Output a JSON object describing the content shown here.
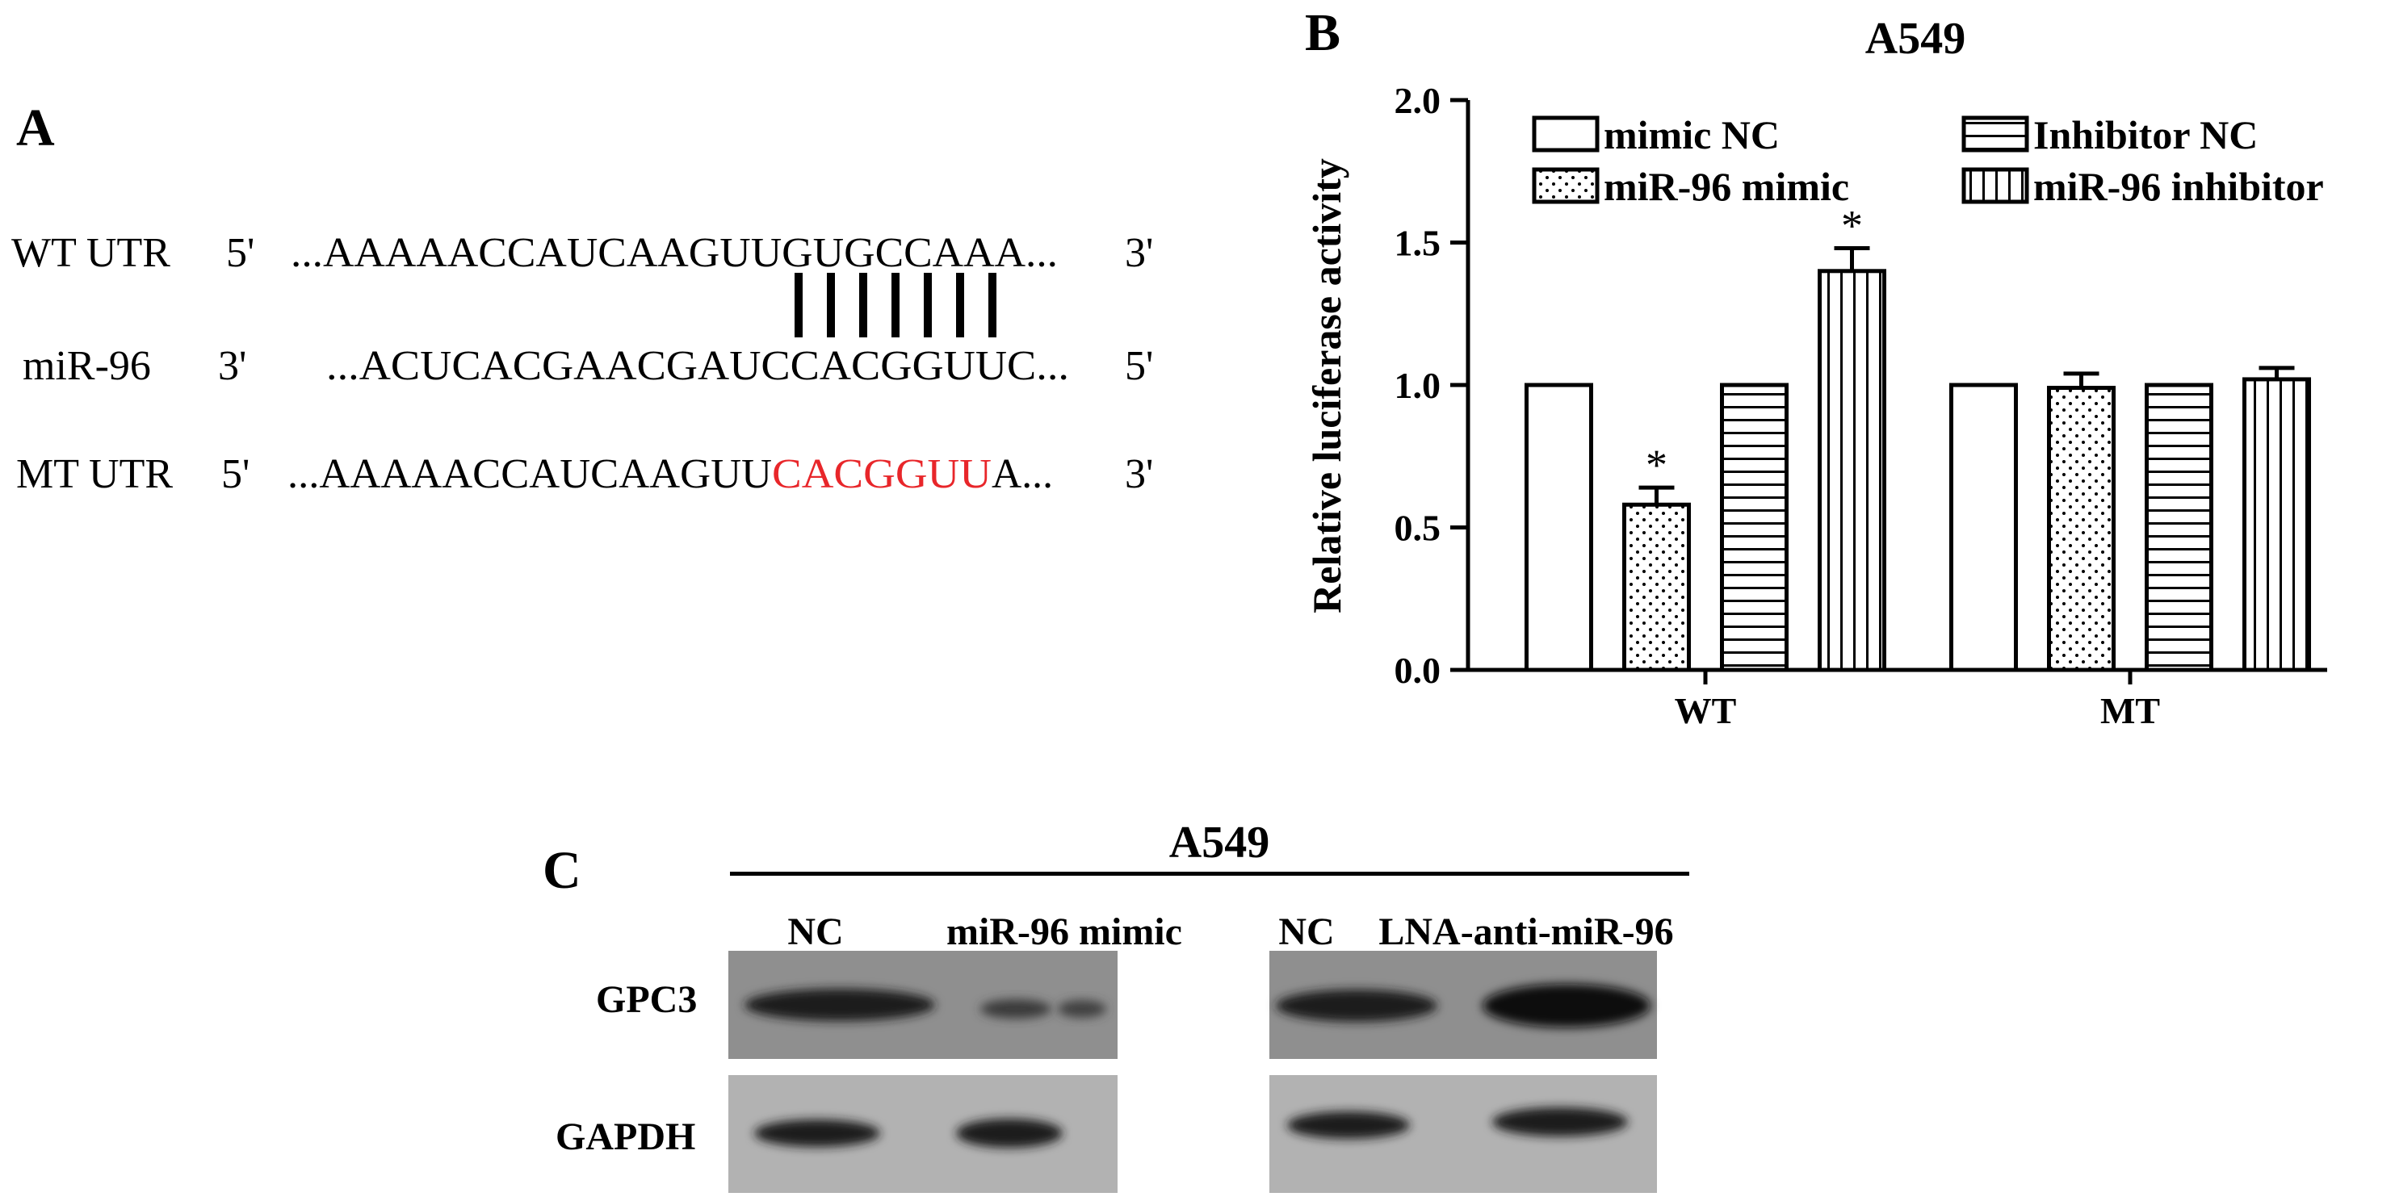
{
  "panel_a": {
    "letter": "A",
    "rows": [
      {
        "label": "WT UTR",
        "left_end": "5'",
        "right_end": "3'",
        "seq_plain": "...AAAAACCAUCAAGUUGUGCCAAA...",
        "seq_red": "",
        "seq_after": ""
      },
      {
        "label": "miR-96",
        "left_end": "3'",
        "right_end": "5'",
        "seq_plain": "...ACUCACGAACGAUCCACGGUUC...",
        "seq_red": "",
        "seq_after": ""
      },
      {
        "label": "MT UTR",
        "left_end": "5'",
        "right_end": "3'",
        "seq_plain": "...AAAAACCAUCAAGUU",
        "seq_red": "CACGGUU",
        "seq_after": "A..."
      }
    ],
    "pairing_lines": 7,
    "mutant_color": "#e8262a"
  },
  "chart_data": {
    "type": "bar",
    "panel_letter": "B",
    "title": "A549",
    "ylabel": "Relative luciferase activity",
    "xlabel": "",
    "ylim": [
      0,
      2.0
    ],
    "yticks": [
      "0.0",
      "0.5",
      "1.0",
      "1.5",
      "2.0"
    ],
    "categories": [
      "WT",
      "MT"
    ],
    "series": [
      {
        "name": "mimic NC",
        "pattern": "open",
        "values": [
          1.0,
          1.0
        ],
        "errors": [
          0,
          0
        ],
        "stars": [
          "",
          ""
        ]
      },
      {
        "name": "miR-96 mimic",
        "pattern": "dots",
        "values": [
          0.58,
          0.99
        ],
        "errors": [
          0.06,
          0.05
        ],
        "stars": [
          "*",
          ""
        ]
      },
      {
        "name": "Inhibitor NC",
        "pattern": "horizontal",
        "values": [
          1.0,
          1.0
        ],
        "errors": [
          0,
          0
        ],
        "stars": [
          "",
          ""
        ]
      },
      {
        "name": "miR-96 inhibitor",
        "pattern": "vertical",
        "values": [
          1.4,
          1.02
        ],
        "errors": [
          0.08,
          0.04
        ],
        "stars": [
          "*",
          ""
        ]
      }
    ],
    "legend_placement": "top",
    "grid": false
  },
  "panel_c": {
    "letter": "C",
    "title": "A549",
    "left_lanes": [
      "NC",
      "miR-96 mimic"
    ],
    "right_lanes": [
      "NC",
      "LNA-anti-miR-96"
    ],
    "rows": [
      "GPC3",
      "GAPDH"
    ]
  }
}
